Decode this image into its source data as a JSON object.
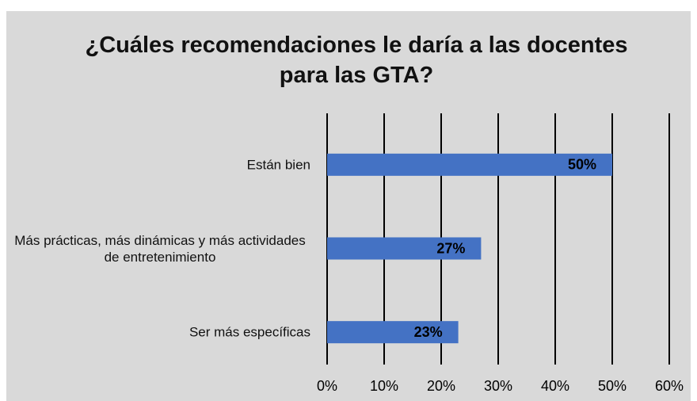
{
  "chart_data": {
    "type": "bar",
    "orientation": "horizontal",
    "title": "¿Cuáles recomendaciones le daría a las docentes para las GTA?",
    "categories": [
      "Están bien",
      "Más prácticas, más dinámicas y más actividades de entretenimiento",
      "Ser más específicas"
    ],
    "values": [
      50,
      27,
      23
    ],
    "value_labels": [
      "50%",
      "27%",
      "23%"
    ],
    "color": "#4472c4",
    "xlim": [
      0,
      60
    ],
    "xticks": [
      {
        "value": 0,
        "label": "0%"
      },
      {
        "value": 10,
        "label": "10%"
      },
      {
        "value": 20,
        "label": "20%"
      },
      {
        "value": 30,
        "label": "30%"
      },
      {
        "value": 40,
        "label": "40%"
      },
      {
        "value": 50,
        "label": "50%"
      },
      {
        "value": 60,
        "label": "60%"
      }
    ],
    "grid": true
  }
}
